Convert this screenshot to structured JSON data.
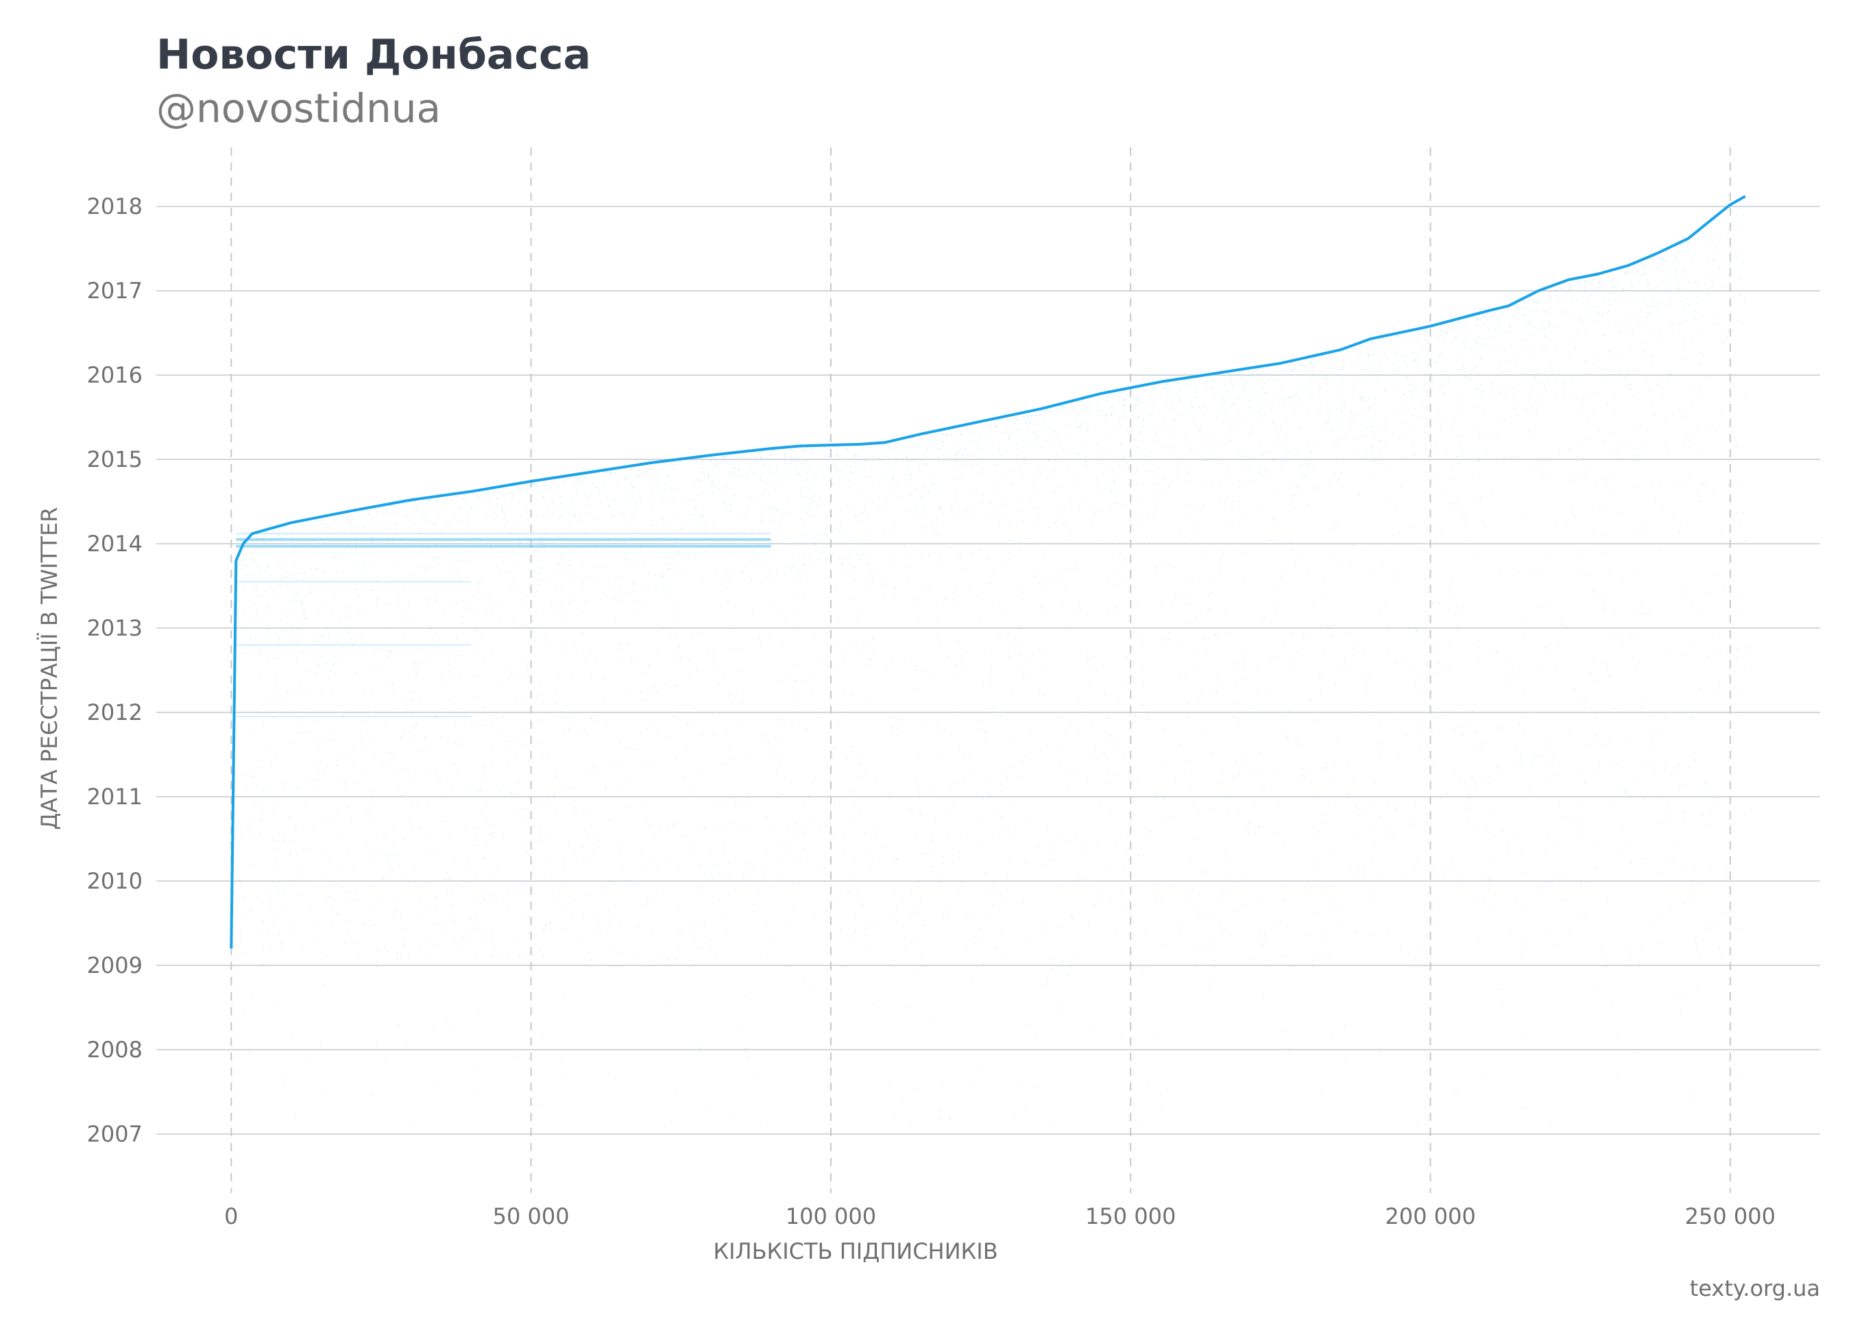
{
  "header": {
    "title": "Новости Донбасса",
    "subtitle": "@novostidnua"
  },
  "footer": {
    "source": "texty.org.ua"
  },
  "colors": {
    "series": "#1aa3e8",
    "points": "#4dbdf0",
    "grid": "#d3d6da",
    "vgrid": "#c8c8c8",
    "text": "#707070",
    "title": "#363d48"
  },
  "chart_data": {
    "type": "scatter",
    "xlabel": "КІЛЬКІСТЬ ПІДПИСНИКІВ",
    "ylabel": "ДАТА РЕЄСТРАЦІЇ В TWITTER",
    "xlim": [
      -12500,
      265000
    ],
    "ylim": [
      2006.3,
      2018.7
    ],
    "x_ticks": [
      0,
      50000,
      100000,
      150000,
      200000,
      250000
    ],
    "x_tick_labels": [
      "0",
      "50 000",
      "100 000",
      "150 000",
      "200 000",
      "250 000"
    ],
    "y_ticks": [
      2007,
      2008,
      2009,
      2010,
      2011,
      2012,
      2013,
      2014,
      2015,
      2016,
      2017,
      2018
    ],
    "y_tick_labels": [
      "2007",
      "2008",
      "2009",
      "2010",
      "2011",
      "2012",
      "2013",
      "2014",
      "2015",
      "2016",
      "2017",
      "2018"
    ],
    "grid": {
      "horizontal": "solid",
      "vertical": "dashed"
    },
    "upper_envelope": {
      "name": "",
      "x": [
        0,
        800,
        2000,
        3500,
        6000,
        10000,
        15000,
        20000,
        30000,
        40000,
        50000,
        60000,
        70000,
        80000,
        90000,
        95000,
        100000,
        105000,
        109000,
        115000,
        125000,
        135000,
        145000,
        155000,
        165000,
        175000,
        185000,
        190000,
        200000,
        210000,
        213000,
        218000,
        223000,
        228000,
        233000,
        238000,
        243000,
        247000,
        250000,
        252500
      ],
      "y": [
        2009.2,
        2013.8,
        2014.0,
        2014.12,
        2014.17,
        2014.25,
        2014.32,
        2014.39,
        2014.52,
        2014.62,
        2014.74,
        2014.85,
        2014.96,
        2015.05,
        2015.13,
        2015.16,
        2015.17,
        2015.18,
        2015.2,
        2015.3,
        2015.45,
        2015.6,
        2015.78,
        2015.92,
        2016.03,
        2016.14,
        2016.3,
        2016.43,
        2016.58,
        2016.77,
        2016.82,
        2017.0,
        2017.13,
        2017.2,
        2017.3,
        2017.45,
        2017.62,
        2017.85,
        2018.02,
        2018.12
      ]
    },
    "scatter_density": {
      "description": "Each follower is a point: x = follower rank (order of following), y = account registration date; points fill the area below the upper envelope, denser near it and near 2014.",
      "band_lines_y": [
        2014.05,
        2013.97,
        2014.12,
        2013.55,
        2012.8,
        2011.95
      ],
      "n_points": 30000
    }
  }
}
